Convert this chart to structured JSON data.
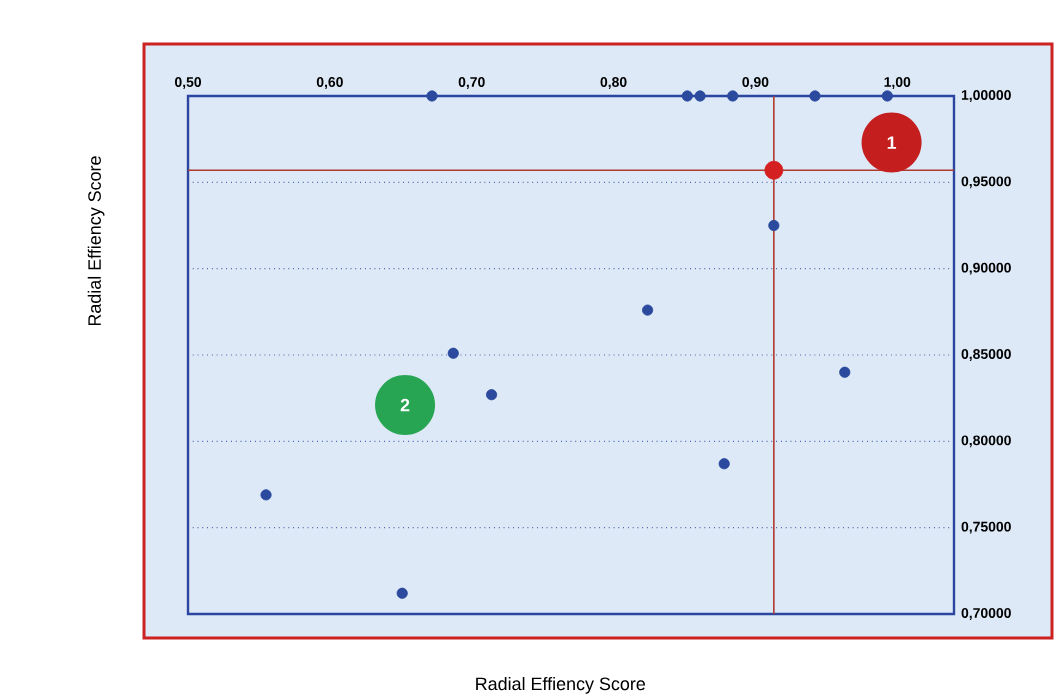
{
  "chart_data": {
    "type": "scatter",
    "xlabel": "Radial Effiency Score",
    "ylabel": "Radial Effiency Score",
    "xlim": [
      0.5,
      1.04
    ],
    "ylim": [
      0.7,
      1.0
    ],
    "xticks": [
      {
        "value": 0.5,
        "label": "0,50"
      },
      {
        "value": 0.6,
        "label": "0,60"
      },
      {
        "value": 0.7,
        "label": "0,70"
      },
      {
        "value": 0.8,
        "label": "0,80"
      },
      {
        "value": 0.9,
        "label": "0,90"
      },
      {
        "value": 1.0,
        "label": "1,00"
      }
    ],
    "yticks": [
      {
        "value": 0.7,
        "label": "0,70000"
      },
      {
        "value": 0.75,
        "label": "0,75000"
      },
      {
        "value": 0.8,
        "label": "0,80000"
      },
      {
        "value": 0.85,
        "label": "0,85000"
      },
      {
        "value": 0.9,
        "label": "0,90000"
      },
      {
        "value": 0.95,
        "label": "0,95000"
      },
      {
        "value": 1.0,
        "label": "1,00000"
      }
    ],
    "series": [
      {
        "color": "#2b4a9e",
        "x": [
          0.672,
          0.852,
          0.861,
          0.884,
          0.942,
          0.993,
          0.913,
          0.824,
          0.687,
          0.714,
          0.963,
          0.555,
          0.878,
          0.651
        ],
        "values": [
          1.0,
          1.0,
          1.0,
          1.0,
          1.0,
          1.0,
          0.925,
          0.876,
          0.851,
          0.827,
          0.84,
          0.769,
          0.787,
          0.712
        ]
      },
      {
        "color": "#d42020",
        "x": [
          0.913
        ],
        "values": [
          0.957
        ]
      }
    ],
    "ref_lines": [
      {
        "axis": "x",
        "value": 0.913,
        "color": "#b03a2e"
      },
      {
        "axis": "y",
        "value": 0.957,
        "color": "#b03a2e"
      }
    ],
    "annotations": [
      {
        "text": "1",
        "x": 0.996,
        "y": 0.973
      },
      {
        "text": "2",
        "x": 0.653,
        "y": 0.821
      }
    ],
    "grid": "y",
    "marker": "circle"
  }
}
